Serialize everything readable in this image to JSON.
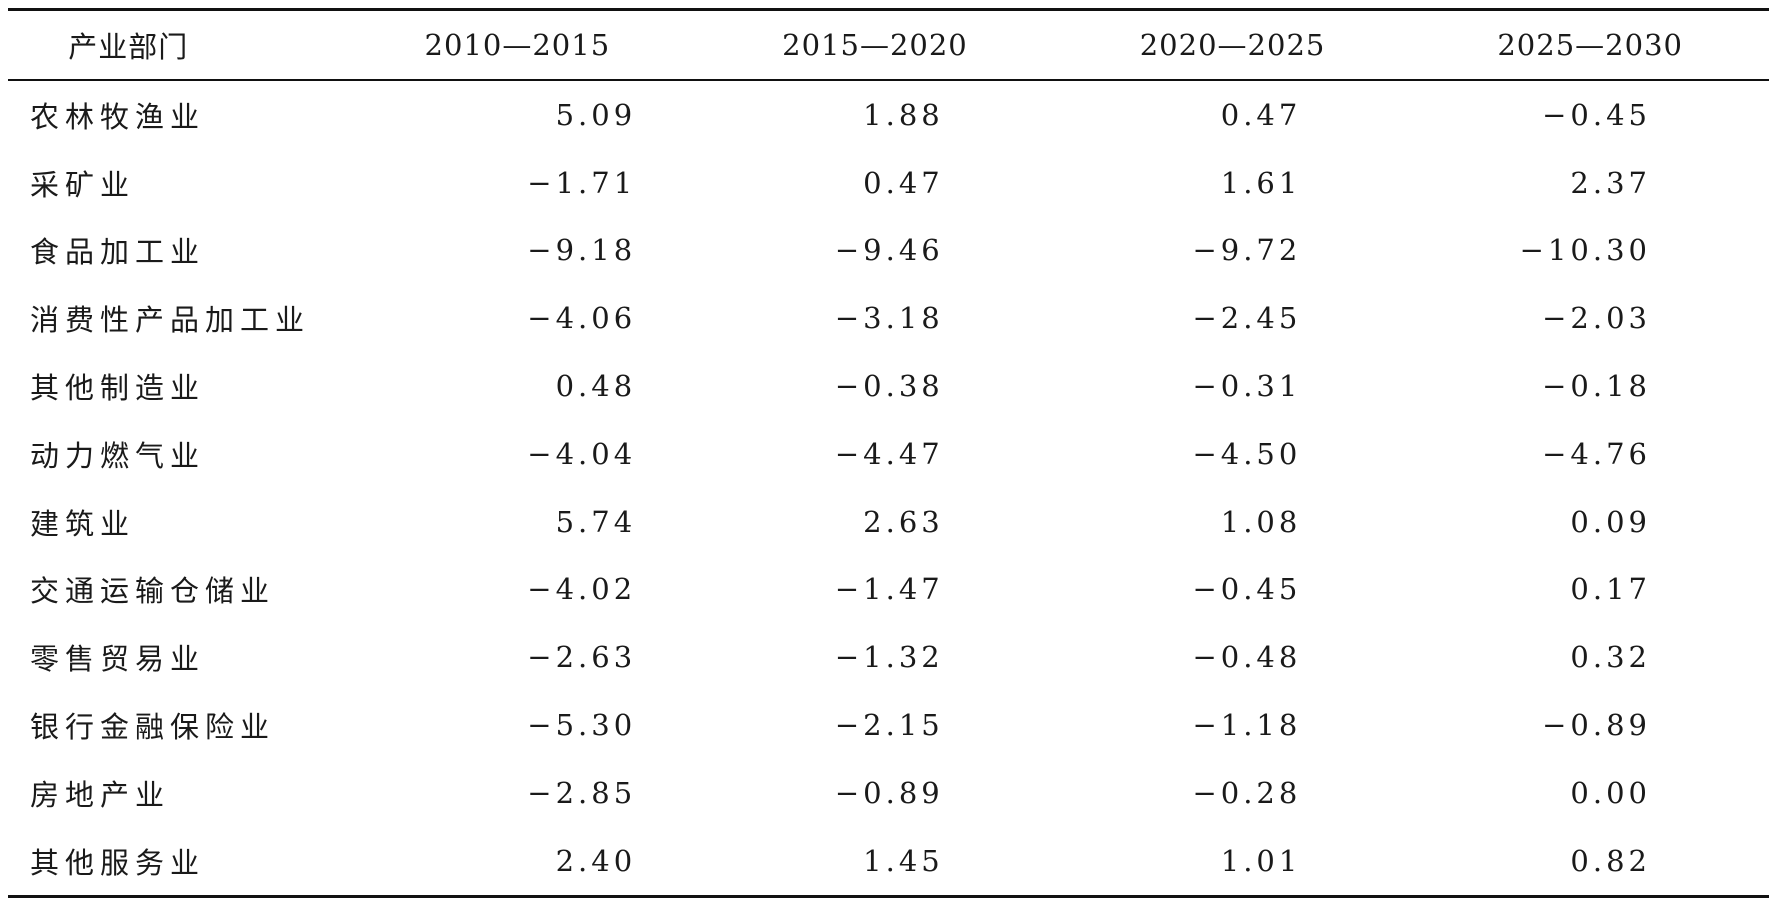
{
  "table": {
    "headers": [
      "产业部门",
      "2010—2015",
      "2015—2020",
      "2020—2025",
      "2025—2030"
    ],
    "rows": [
      {
        "sector": "农林牧渔业",
        "values": [
          "5.09",
          "1.88",
          "0.47",
          "−0.45"
        ]
      },
      {
        "sector": "采矿业",
        "values": [
          "−1.71",
          "0.47",
          "1.61",
          "2.37"
        ]
      },
      {
        "sector": "食品加工业",
        "values": [
          "−9.18",
          "−9.46",
          "−9.72",
          "−10.30"
        ]
      },
      {
        "sector": "消费性产品加工业",
        "values": [
          "−4.06",
          "−3.18",
          "−2.45",
          "−2.03"
        ]
      },
      {
        "sector": "其他制造业",
        "values": [
          "0.48",
          "−0.38",
          "−0.31",
          "−0.18"
        ]
      },
      {
        "sector": "动力燃气业",
        "values": [
          "−4.04",
          "−4.47",
          "−4.50",
          "−4.76"
        ]
      },
      {
        "sector": "建筑业",
        "values": [
          "5.74",
          "2.63",
          "1.08",
          "0.09"
        ]
      },
      {
        "sector": "交通运输仓储业",
        "values": [
          "−4.02",
          "−1.47",
          "−0.45",
          "0.17"
        ]
      },
      {
        "sector": "零售贸易业",
        "values": [
          "−2.63",
          "−1.32",
          "−0.48",
          "0.32"
        ]
      },
      {
        "sector": "银行金融保险业",
        "values": [
          "−5.30",
          "−2.15",
          "−1.18",
          "−0.89"
        ]
      },
      {
        "sector": "房地产业",
        "values": [
          "−2.85",
          "−0.89",
          "−0.28",
          "0.00"
        ]
      },
      {
        "sector": "其他服务业",
        "values": [
          "2.40",
          "1.45",
          "1.01",
          "0.82"
        ]
      }
    ]
  }
}
